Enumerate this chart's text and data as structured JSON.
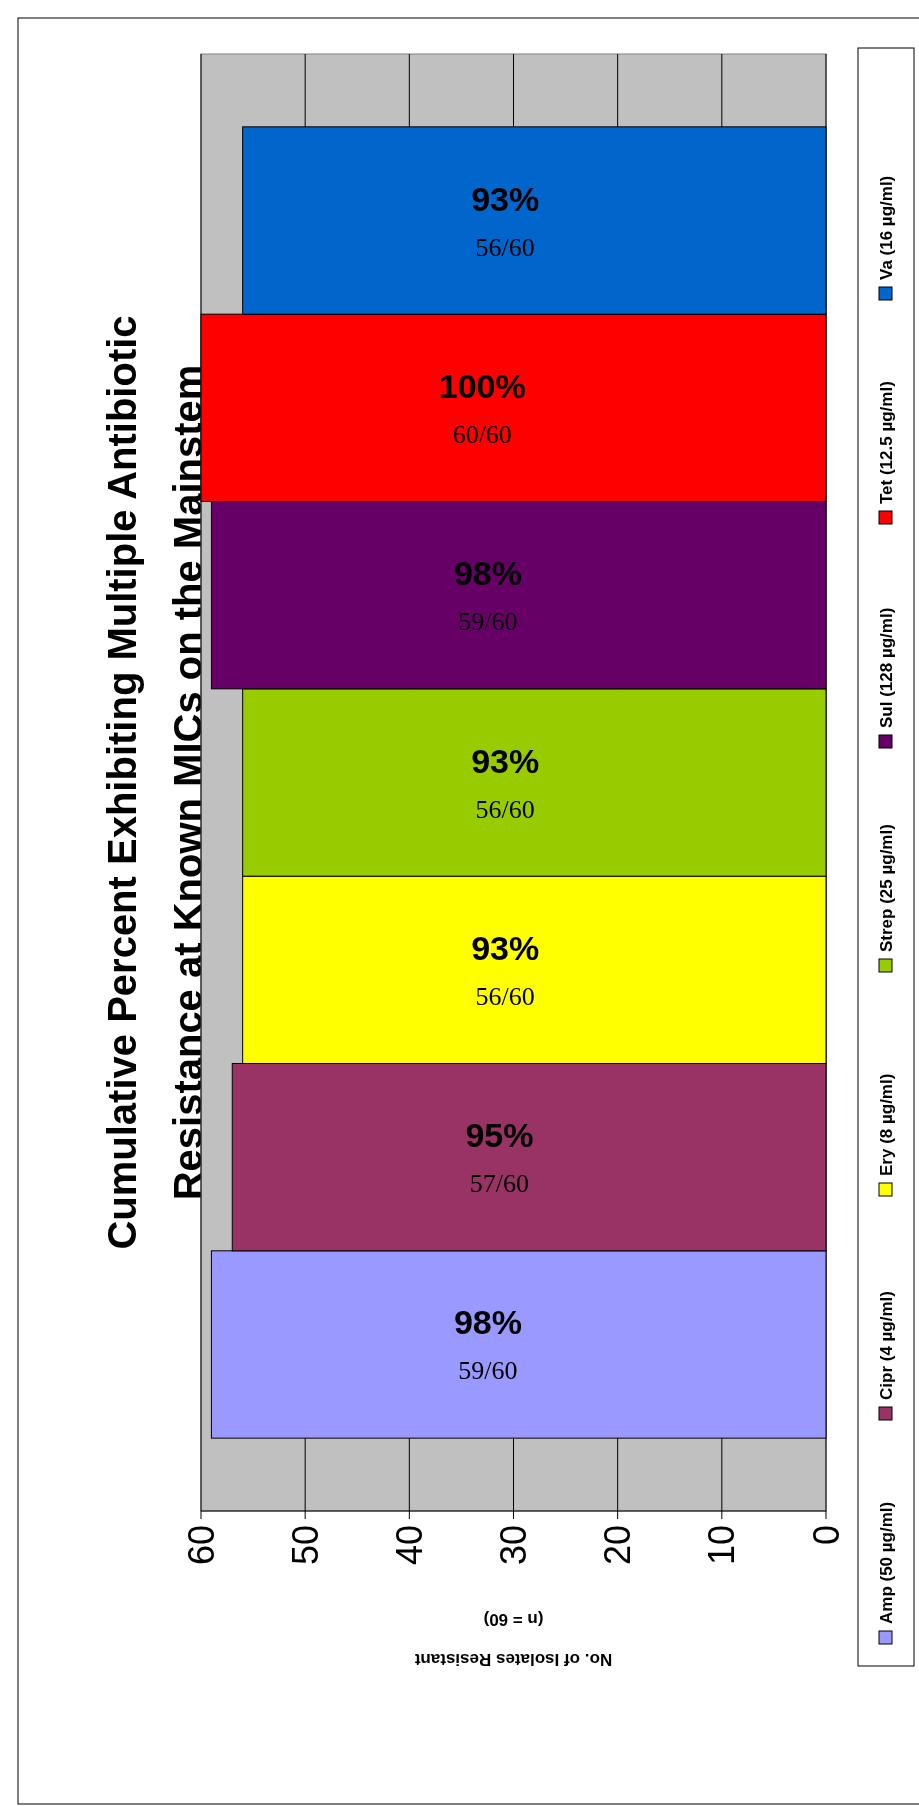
{
  "chart_data": {
    "type": "bar",
    "orientation": "horizontal",
    "title": "Cumulative Percent Exhibiting Multiple Antibiotic\nResistance at Known MICs on the Mainstem",
    "xlabel": "No. of Isolates Resistant\n(n = 60)",
    "categories": [
      null
    ],
    "series": [
      {
        "name": "Amp (50 µg/ml)",
        "color": "#9999ff",
        "values": [
          59
        ],
        "value_labels": [
          "98% 59/60"
        ]
      },
      {
        "name": "Cipr (4 µg/ml)",
        "color": "#993366",
        "values": [
          57
        ],
        "value_labels": [
          "95% 57/60"
        ]
      },
      {
        "name": "Ery (8 µg/ml)",
        "color": "#ffff00",
        "values": [
          56
        ],
        "value_labels": [
          "93% 56/60"
        ]
      },
      {
        "name": "Strep (25 µg/ml)",
        "color": "#99cc00",
        "values": [
          56
        ],
        "value_labels": [
          "93% 56/60"
        ]
      },
      {
        "name": "Sul (128 µg/ml)",
        "color": "#660066",
        "values": [
          59
        ],
        "value_labels": [
          "98% 59/60"
        ]
      },
      {
        "name": "Tet (12.5 µg/ml)",
        "color": "#ff0000",
        "values": [
          60
        ],
        "value_labels": [
          "100% 60/60"
        ]
      },
      {
        "name": "Va (16 µg/ml)",
        "color": "#0066cc",
        "values": [
          56
        ],
        "value_labels": [
          "93% 56/60"
        ]
      }
    ],
    "xlim": [
      60,
      0
    ],
    "xticks": [
      60,
      50,
      40,
      30,
      20,
      10,
      0
    ],
    "grid": "x",
    "legend": "right"
  }
}
